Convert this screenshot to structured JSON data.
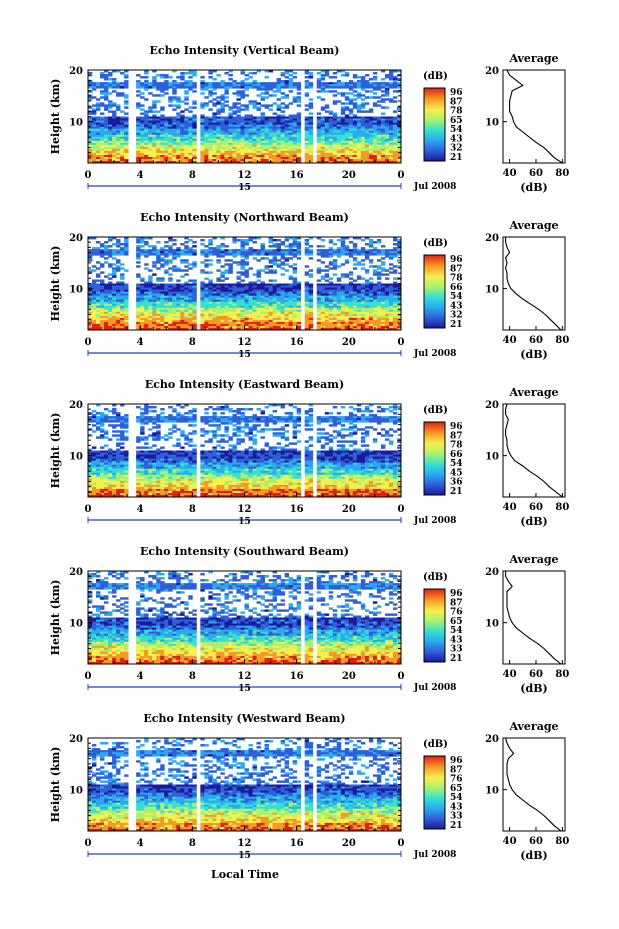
{
  "figure": {
    "xlabel": "Local Time",
    "date_label": "Jul 2008",
    "day_label": "15",
    "colorbar_unit": "(dB)",
    "avg_title": "Average",
    "avg_xlabel": "(dB)",
    "ylabel": "Height (km)"
  },
  "chart_data": [
    {
      "type": "heatmap",
      "title": "Echo Intensity (Vertical Beam)",
      "ylabel": "Height (km)",
      "xlim": [
        0,
        24
      ],
      "ylim": [
        2,
        20
      ],
      "xticks": [
        "0",
        "4",
        "8",
        "12",
        "16",
        "20",
        "0"
      ],
      "yticks": [
        "10",
        "20"
      ],
      "colorbar": {
        "unit": "(dB)",
        "ticks": [
          "96",
          "87",
          "78",
          "65",
          "54",
          "43",
          "32",
          "21"
        ]
      },
      "data_gaps_hours": [
        [
          3.2,
          3.6
        ],
        [
          8.2,
          8.6
        ],
        [
          16.3,
          16.6
        ],
        [
          17.3,
          17.6
        ]
      ],
      "average_profile": {
        "title": "Average",
        "xlabel": "(dB)",
        "xticks": [
          "40",
          "60",
          "80"
        ],
        "yticks": [
          "10",
          "20"
        ],
        "xlim": [
          35,
          82
        ],
        "ylim": [
          2,
          20
        ],
        "heights": [
          2,
          3,
          4,
          5,
          6,
          7,
          8,
          9,
          10,
          11,
          12,
          13,
          14,
          15,
          16,
          17,
          18,
          19,
          20
        ],
        "values": [
          80,
          74,
          70,
          66,
          60,
          55,
          50,
          45,
          43,
          42,
          40,
          40,
          40,
          41,
          42,
          50,
          45,
          40,
          38
        ]
      }
    },
    {
      "type": "heatmap",
      "title": "Echo Intensity (Northward Beam)",
      "ylabel": "Height (km)",
      "xlim": [
        0,
        24
      ],
      "ylim": [
        2,
        20
      ],
      "xticks": [
        "0",
        "4",
        "8",
        "12",
        "16",
        "20",
        "0"
      ],
      "yticks": [
        "10",
        "20"
      ],
      "colorbar": {
        "unit": "(dB)",
        "ticks": [
          "96",
          "87",
          "78",
          "66",
          "54",
          "43",
          "32",
          "21"
        ]
      },
      "data_gaps_hours": [
        [
          3.2,
          3.6
        ],
        [
          8.2,
          8.6
        ],
        [
          16.3,
          16.6
        ],
        [
          17.3,
          17.6
        ]
      ],
      "average_profile": {
        "title": "Average",
        "xlabel": "(dB)",
        "xticks": [
          "40",
          "60",
          "80"
        ],
        "yticks": [
          "10",
          "20"
        ],
        "xlim": [
          35,
          82
        ],
        "ylim": [
          2,
          20
        ],
        "heights": [
          2,
          3,
          4,
          5,
          6,
          7,
          8,
          9,
          10,
          11,
          12,
          13,
          14,
          15,
          16,
          17,
          18,
          19,
          20
        ],
        "values": [
          79,
          75,
          71,
          67,
          62,
          56,
          50,
          45,
          41,
          39,
          38,
          38,
          37,
          38,
          37,
          40,
          38,
          37,
          37
        ]
      }
    },
    {
      "type": "heatmap",
      "title": "Echo Intensity (Eastward Beam)",
      "ylabel": "Height (km)",
      "xlim": [
        0,
        24
      ],
      "ylim": [
        2,
        20
      ],
      "xticks": [
        "0",
        "4",
        "8",
        "12",
        "16",
        "20",
        "0"
      ],
      "yticks": [
        "10",
        "20"
      ],
      "colorbar": {
        "unit": "(dB)",
        "ticks": [
          "96",
          "87",
          "78",
          "66",
          "54",
          "45",
          "36",
          "21"
        ]
      },
      "data_gaps_hours": [
        [
          3.2,
          3.6
        ],
        [
          8.2,
          8.6
        ],
        [
          16.3,
          16.6
        ],
        [
          17.3,
          17.6
        ]
      ],
      "average_profile": {
        "title": "Average",
        "xlabel": "(dB)",
        "xticks": [
          "40",
          "60",
          "80"
        ],
        "yticks": [
          "10",
          "20"
        ],
        "xlim": [
          35,
          82
        ],
        "ylim": [
          2,
          20
        ],
        "heights": [
          2,
          3,
          4,
          5,
          6,
          7,
          8,
          9,
          10,
          11,
          12,
          13,
          14,
          15,
          16,
          17,
          18,
          19,
          20
        ],
        "values": [
          80,
          75,
          70,
          66,
          61,
          55,
          50,
          44,
          41,
          39,
          38,
          38,
          37,
          37,
          38,
          39,
          37,
          37,
          38
        ]
      }
    },
    {
      "type": "heatmap",
      "title": "Echo Intensity (Southward Beam)",
      "ylabel": "Height (km)",
      "xlim": [
        0,
        24
      ],
      "ylim": [
        2,
        20
      ],
      "xticks": [
        "0",
        "4",
        "8",
        "12",
        "16",
        "20",
        "0"
      ],
      "yticks": [
        "10",
        "20"
      ],
      "colorbar": {
        "unit": "(dB)",
        "ticks": [
          "96",
          "87",
          "76",
          "65",
          "54",
          "43",
          "33",
          "21"
        ]
      },
      "data_gaps_hours": [
        [
          3.2,
          3.6
        ],
        [
          8.2,
          8.6
        ],
        [
          16.3,
          16.6
        ],
        [
          17.3,
          17.6
        ]
      ],
      "average_profile": {
        "title": "Average",
        "xlabel": "(dB)",
        "xticks": [
          "40",
          "60",
          "80"
        ],
        "yticks": [
          "10",
          "20"
        ],
        "xlim": [
          35,
          82
        ],
        "ylim": [
          2,
          20
        ],
        "heights": [
          2,
          3,
          4,
          5,
          6,
          7,
          8,
          9,
          10,
          11,
          12,
          13,
          14,
          15,
          16,
          17,
          18,
          19,
          20
        ],
        "values": [
          79,
          74,
          70,
          66,
          61,
          55,
          50,
          45,
          42,
          40,
          39,
          38,
          38,
          38,
          38,
          42,
          39,
          37,
          37
        ]
      }
    },
    {
      "type": "heatmap",
      "title": "Echo Intensity (Westward Beam)",
      "ylabel": "Height (km)",
      "xlim": [
        0,
        24
      ],
      "ylim": [
        2,
        20
      ],
      "xticks": [
        "0",
        "4",
        "8",
        "12",
        "16",
        "20",
        "0"
      ],
      "yticks": [
        "10",
        "20"
      ],
      "colorbar": {
        "unit": "(dB)",
        "ticks": [
          "96",
          "87",
          "76",
          "65",
          "54",
          "43",
          "33",
          "21"
        ]
      },
      "data_gaps_hours": [
        [
          3.2,
          3.6
        ],
        [
          8.2,
          8.6
        ],
        [
          16.3,
          16.6
        ],
        [
          17.3,
          17.6
        ]
      ],
      "average_profile": {
        "title": "Average",
        "xlabel": "(dB)",
        "xticks": [
          "40",
          "60",
          "80"
        ],
        "yticks": [
          "10",
          "20"
        ],
        "xlim": [
          35,
          82
        ],
        "ylim": [
          2,
          20
        ],
        "heights": [
          2,
          3,
          4,
          5,
          6,
          7,
          8,
          9,
          10,
          11,
          12,
          13,
          14,
          15,
          16,
          17,
          18,
          19,
          20
        ],
        "values": [
          79,
          74,
          70,
          66,
          61,
          55,
          50,
          45,
          42,
          40,
          39,
          38,
          38,
          38,
          39,
          43,
          40,
          38,
          37
        ]
      }
    }
  ]
}
